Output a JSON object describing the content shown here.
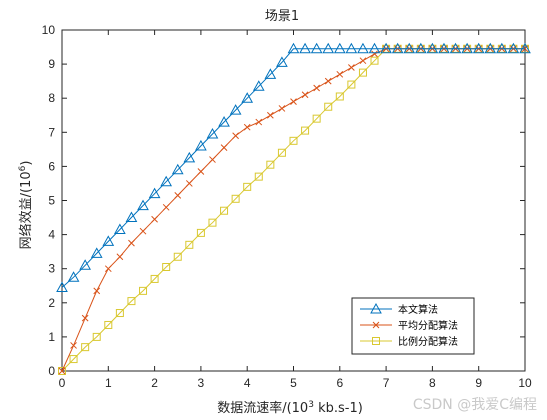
{
  "chart_data": {
    "type": "line",
    "title": "场景1",
    "xlabel_prefix": "数据流速率/(10",
    "xlabel_exp": "3",
    "xlabel_suffix": " kb.s-1)",
    "ylabel_prefix": "网络效益/(10",
    "ylabel_exp": "6",
    "ylabel_suffix": ")",
    "xlim": [
      0,
      10
    ],
    "ylim": [
      0,
      10
    ],
    "xticks": [
      "0",
      "1",
      "2",
      "3",
      "4",
      "5",
      "6",
      "7",
      "8",
      "9",
      "10"
    ],
    "yticks": [
      "0",
      "1",
      "2",
      "3",
      "4",
      "5",
      "6",
      "7",
      "8",
      "9",
      "10"
    ],
    "grid": false,
    "legend_position": "bottom-right",
    "x": [
      0,
      0.25,
      0.5,
      0.75,
      1,
      1.25,
      1.5,
      1.75,
      2,
      2.25,
      2.5,
      2.75,
      3,
      3.25,
      3.5,
      3.75,
      4,
      4.25,
      4.5,
      4.75,
      5,
      5.25,
      5.5,
      5.75,
      6,
      6.25,
      6.5,
      6.75,
      7,
      7.25,
      7.5,
      7.75,
      8,
      8.25,
      8.5,
      8.75,
      9,
      9.25,
      9.5,
      9.75,
      10
    ],
    "series": [
      {
        "name": "本文算法",
        "color": "#0072BD",
        "marker": "triangle",
        "values": [
          2.45,
          2.75,
          3.1,
          3.45,
          3.8,
          4.15,
          4.5,
          4.85,
          5.2,
          5.55,
          5.9,
          6.25,
          6.6,
          6.95,
          7.3,
          7.65,
          8.0,
          8.35,
          8.7,
          9.05,
          9.45,
          9.45,
          9.45,
          9.45,
          9.45,
          9.45,
          9.45,
          9.45,
          9.45,
          9.45,
          9.45,
          9.45,
          9.45,
          9.45,
          9.45,
          9.45,
          9.45,
          9.45,
          9.45,
          9.45,
          9.45
        ]
      },
      {
        "name": "平均分配算法",
        "color": "#D95319",
        "marker": "x",
        "values": [
          0,
          0.75,
          1.55,
          2.35,
          3.0,
          3.35,
          3.75,
          4.1,
          4.45,
          4.8,
          5.15,
          5.5,
          5.85,
          6.2,
          6.55,
          6.9,
          7.15,
          7.3,
          7.5,
          7.7,
          7.9,
          8.1,
          8.3,
          8.5,
          8.7,
          8.9,
          9.1,
          9.3,
          9.45,
          9.45,
          9.45,
          9.45,
          9.45,
          9.45,
          9.45,
          9.45,
          9.45,
          9.45,
          9.45,
          9.45,
          9.45
        ]
      },
      {
        "name": "比例分配算法",
        "color": "#D9C830",
        "marker": "square",
        "values": [
          0,
          0.35,
          0.7,
          1.0,
          1.35,
          1.7,
          2.05,
          2.35,
          2.7,
          3.05,
          3.35,
          3.7,
          4.05,
          4.35,
          4.7,
          5.05,
          5.4,
          5.7,
          6.05,
          6.4,
          6.75,
          7.05,
          7.4,
          7.75,
          8.05,
          8.4,
          8.75,
          9.1,
          9.45,
          9.45,
          9.45,
          9.45,
          9.45,
          9.45,
          9.45,
          9.45,
          9.45,
          9.45,
          9.45,
          9.45,
          9.45
        ]
      }
    ]
  },
  "watermark": "CSDN @我爱C编程"
}
